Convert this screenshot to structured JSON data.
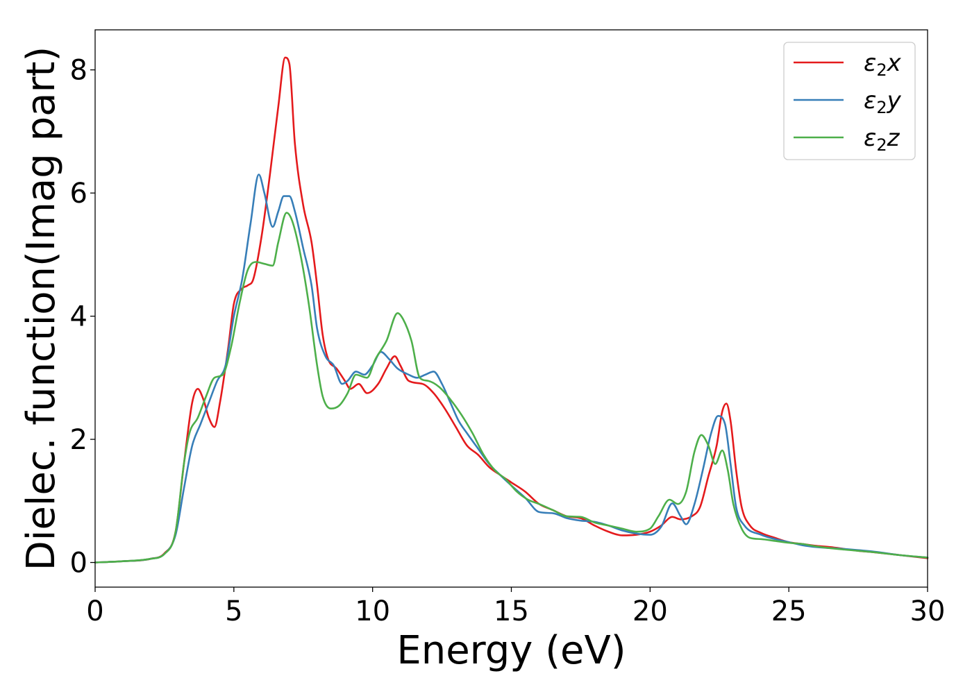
{
  "chart_data": {
    "type": "line",
    "title": "",
    "xlabel": "Energy (eV)",
    "ylabel": "Dielec. function(Imag part)",
    "xlim": [
      0,
      30
    ],
    "ylim": [
      -0.4,
      8.65
    ],
    "xticks": [
      0,
      5,
      10,
      15,
      20,
      25,
      30
    ],
    "yticks": [
      0,
      2,
      4,
      6,
      8
    ],
    "grid": false,
    "legend_position": "top-right",
    "series": [
      {
        "name": "ε2x",
        "legend_main": "ε",
        "legend_sub": "2",
        "legend_suffix": "x",
        "color": "#e41a1c",
        "points": [
          [
            0,
            0
          ],
          [
            1,
            0.02
          ],
          [
            2,
            0.06
          ],
          [
            2.5,
            0.15
          ],
          [
            2.9,
            0.5
          ],
          [
            3.2,
            1.6
          ],
          [
            3.5,
            2.6
          ],
          [
            3.7,
            2.82
          ],
          [
            3.9,
            2.65
          ],
          [
            4.1,
            2.35
          ],
          [
            4.3,
            2.2
          ],
          [
            4.5,
            2.6
          ],
          [
            4.8,
            3.5
          ],
          [
            5.0,
            4.2
          ],
          [
            5.3,
            4.45
          ],
          [
            5.5,
            4.5
          ],
          [
            5.7,
            4.6
          ],
          [
            6.0,
            5.3
          ],
          [
            6.3,
            6.3
          ],
          [
            6.6,
            7.4
          ],
          [
            6.85,
            8.2
          ],
          [
            7.0,
            8.1
          ],
          [
            7.2,
            6.8
          ],
          [
            7.5,
            5.8
          ],
          [
            7.8,
            5.2
          ],
          [
            8.0,
            4.5
          ],
          [
            8.2,
            3.7
          ],
          [
            8.4,
            3.3
          ],
          [
            8.7,
            3.15
          ],
          [
            9.0,
            2.95
          ],
          [
            9.2,
            2.82
          ],
          [
            9.5,
            2.9
          ],
          [
            9.8,
            2.75
          ],
          [
            10.2,
            2.9
          ],
          [
            10.5,
            3.15
          ],
          [
            10.8,
            3.35
          ],
          [
            11.0,
            3.2
          ],
          [
            11.3,
            2.95
          ],
          [
            11.8,
            2.9
          ],
          [
            12.2,
            2.75
          ],
          [
            12.6,
            2.5
          ],
          [
            13.0,
            2.2
          ],
          [
            13.4,
            1.9
          ],
          [
            13.8,
            1.75
          ],
          [
            14.2,
            1.55
          ],
          [
            14.6,
            1.42
          ],
          [
            15.0,
            1.3
          ],
          [
            15.5,
            1.15
          ],
          [
            16.0,
            0.95
          ],
          [
            16.5,
            0.85
          ],
          [
            17.0,
            0.75
          ],
          [
            17.5,
            0.72
          ],
          [
            18.0,
            0.6
          ],
          [
            18.5,
            0.5
          ],
          [
            19.0,
            0.44
          ],
          [
            19.5,
            0.45
          ],
          [
            20.0,
            0.5
          ],
          [
            20.4,
            0.6
          ],
          [
            20.8,
            0.74
          ],
          [
            21.1,
            0.7
          ],
          [
            21.5,
            0.75
          ],
          [
            21.8,
            0.9
          ],
          [
            22.1,
            1.4
          ],
          [
            22.4,
            1.9
          ],
          [
            22.6,
            2.45
          ],
          [
            22.75,
            2.58
          ],
          [
            22.9,
            2.3
          ],
          [
            23.1,
            1.5
          ],
          [
            23.3,
            0.9
          ],
          [
            23.6,
            0.6
          ],
          [
            24,
            0.48
          ],
          [
            24.5,
            0.4
          ],
          [
            25,
            0.33
          ],
          [
            25.5,
            0.3
          ],
          [
            26,
            0.27
          ],
          [
            26.5,
            0.25
          ],
          [
            27,
            0.22
          ],
          [
            27.5,
            0.19
          ],
          [
            28,
            0.17
          ],
          [
            29,
            0.12
          ],
          [
            30,
            0.07
          ]
        ]
      },
      {
        "name": "ε2y",
        "legend_main": "ε",
        "legend_sub": "2",
        "legend_suffix": "y",
        "color": "#377eb8",
        "points": [
          [
            0,
            0
          ],
          [
            1,
            0.02
          ],
          [
            2,
            0.06
          ],
          [
            2.5,
            0.14
          ],
          [
            2.9,
            0.45
          ],
          [
            3.2,
            1.2
          ],
          [
            3.5,
            1.9
          ],
          [
            3.8,
            2.25
          ],
          [
            4.1,
            2.6
          ],
          [
            4.4,
            2.95
          ],
          [
            4.7,
            3.2
          ],
          [
            5.0,
            4.0
          ],
          [
            5.3,
            4.6
          ],
          [
            5.6,
            5.5
          ],
          [
            5.9,
            6.3
          ],
          [
            6.1,
            6.0
          ],
          [
            6.4,
            5.45
          ],
          [
            6.6,
            5.7
          ],
          [
            6.8,
            5.95
          ],
          [
            7.0,
            5.95
          ],
          [
            7.2,
            5.7
          ],
          [
            7.5,
            5.1
          ],
          [
            7.8,
            4.5
          ],
          [
            8.0,
            3.8
          ],
          [
            8.3,
            3.35
          ],
          [
            8.6,
            3.2
          ],
          [
            8.9,
            2.9
          ],
          [
            9.1,
            2.95
          ],
          [
            9.4,
            3.1
          ],
          [
            9.7,
            3.05
          ],
          [
            10.0,
            3.2
          ],
          [
            10.3,
            3.42
          ],
          [
            10.6,
            3.3
          ],
          [
            10.9,
            3.15
          ],
          [
            11.3,
            3.05
          ],
          [
            11.6,
            3.0
          ],
          [
            11.9,
            3.05
          ],
          [
            12.2,
            3.1
          ],
          [
            12.5,
            2.9
          ],
          [
            12.8,
            2.6
          ],
          [
            13.1,
            2.3
          ],
          [
            13.4,
            2.1
          ],
          [
            13.8,
            1.85
          ],
          [
            14.2,
            1.6
          ],
          [
            14.6,
            1.42
          ],
          [
            15.0,
            1.25
          ],
          [
            15.5,
            1.05
          ],
          [
            16.0,
            0.82
          ],
          [
            16.5,
            0.8
          ],
          [
            17.0,
            0.72
          ],
          [
            17.5,
            0.68
          ],
          [
            18.0,
            0.66
          ],
          [
            18.5,
            0.6
          ],
          [
            19.0,
            0.52
          ],
          [
            19.5,
            0.47
          ],
          [
            20.0,
            0.45
          ],
          [
            20.4,
            0.58
          ],
          [
            20.8,
            0.96
          ],
          [
            21.1,
            0.75
          ],
          [
            21.3,
            0.62
          ],
          [
            21.6,
            0.95
          ],
          [
            21.9,
            1.5
          ],
          [
            22.2,
            2.1
          ],
          [
            22.45,
            2.38
          ],
          [
            22.7,
            2.25
          ],
          [
            22.9,
            1.6
          ],
          [
            23.1,
            0.9
          ],
          [
            23.4,
            0.6
          ],
          [
            24,
            0.45
          ],
          [
            24.5,
            0.38
          ],
          [
            25,
            0.33
          ],
          [
            25.5,
            0.28
          ],
          [
            26,
            0.25
          ],
          [
            27,
            0.22
          ],
          [
            28,
            0.18
          ],
          [
            29,
            0.12
          ],
          [
            30,
            0.08
          ]
        ]
      },
      {
        "name": "ε2z",
        "legend_main": "ε",
        "legend_sub": "2",
        "legend_suffix": "z",
        "color": "#4daf4a",
        "points": [
          [
            0,
            0
          ],
          [
            1,
            0.02
          ],
          [
            2,
            0.06
          ],
          [
            2.5,
            0.14
          ],
          [
            2.9,
            0.5
          ],
          [
            3.2,
            1.6
          ],
          [
            3.4,
            2.1
          ],
          [
            3.7,
            2.35
          ],
          [
            4.0,
            2.7
          ],
          [
            4.3,
            3.0
          ],
          [
            4.6,
            3.05
          ],
          [
            4.9,
            3.5
          ],
          [
            5.2,
            4.2
          ],
          [
            5.5,
            4.75
          ],
          [
            5.8,
            4.88
          ],
          [
            6.1,
            4.85
          ],
          [
            6.4,
            4.82
          ],
          [
            6.6,
            5.2
          ],
          [
            6.9,
            5.68
          ],
          [
            7.1,
            5.55
          ],
          [
            7.4,
            5.0
          ],
          [
            7.7,
            4.2
          ],
          [
            8.0,
            3.2
          ],
          [
            8.2,
            2.7
          ],
          [
            8.5,
            2.5
          ],
          [
            8.8,
            2.55
          ],
          [
            9.1,
            2.75
          ],
          [
            9.4,
            3.05
          ],
          [
            9.8,
            3.0
          ],
          [
            10.1,
            3.3
          ],
          [
            10.5,
            3.6
          ],
          [
            10.9,
            4.05
          ],
          [
            11.1,
            3.95
          ],
          [
            11.4,
            3.6
          ],
          [
            11.7,
            3.0
          ],
          [
            12.0,
            2.95
          ],
          [
            12.4,
            2.85
          ],
          [
            12.8,
            2.65
          ],
          [
            13.2,
            2.4
          ],
          [
            13.6,
            2.1
          ],
          [
            14.0,
            1.75
          ],
          [
            14.4,
            1.5
          ],
          [
            14.8,
            1.35
          ],
          [
            15.2,
            1.15
          ],
          [
            15.6,
            1.02
          ],
          [
            16.0,
            0.95
          ],
          [
            16.5,
            0.85
          ],
          [
            17.0,
            0.75
          ],
          [
            17.5,
            0.74
          ],
          [
            18.0,
            0.65
          ],
          [
            18.5,
            0.6
          ],
          [
            19.0,
            0.55
          ],
          [
            19.5,
            0.5
          ],
          [
            20.0,
            0.55
          ],
          [
            20.3,
            0.75
          ],
          [
            20.7,
            1.02
          ],
          [
            21.0,
            0.95
          ],
          [
            21.3,
            1.15
          ],
          [
            21.6,
            1.8
          ],
          [
            21.85,
            2.07
          ],
          [
            22.1,
            1.9
          ],
          [
            22.35,
            1.6
          ],
          [
            22.6,
            1.82
          ],
          [
            22.8,
            1.5
          ],
          [
            23.0,
            0.95
          ],
          [
            23.3,
            0.55
          ],
          [
            23.6,
            0.4
          ],
          [
            24,
            0.38
          ],
          [
            24.5,
            0.35
          ],
          [
            25,
            0.32
          ],
          [
            25.5,
            0.3
          ],
          [
            26,
            0.26
          ],
          [
            27,
            0.21
          ],
          [
            28,
            0.17
          ],
          [
            29,
            0.12
          ],
          [
            30,
            0.08
          ]
        ]
      }
    ]
  }
}
